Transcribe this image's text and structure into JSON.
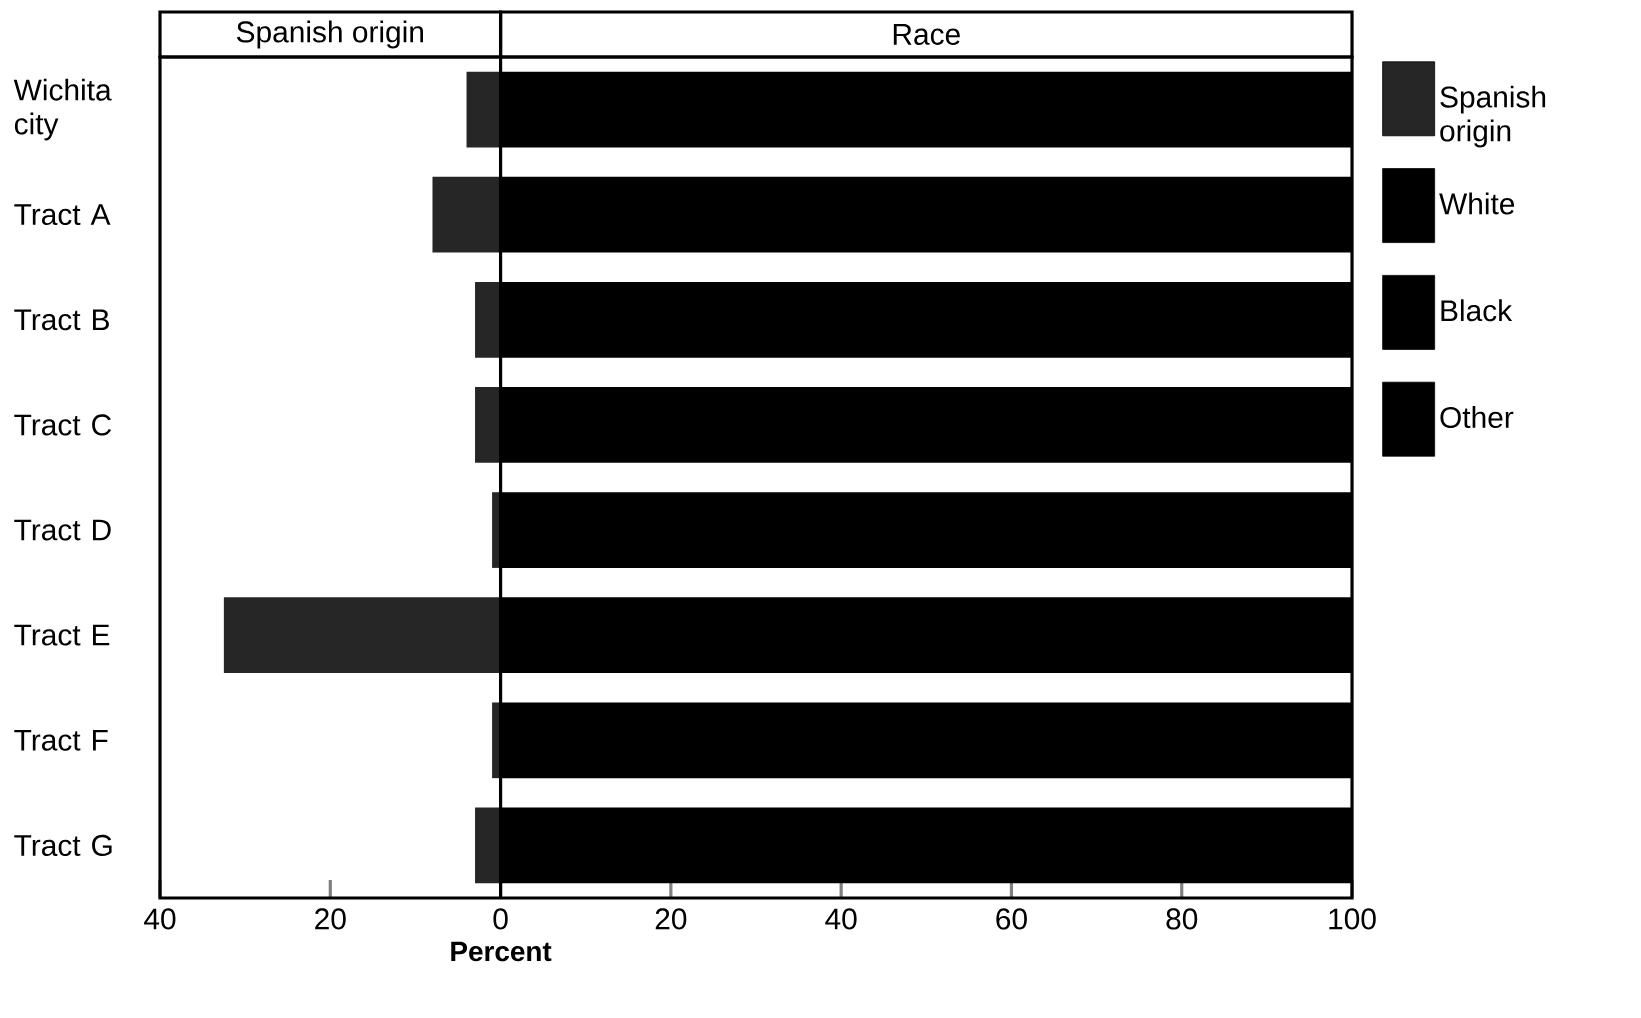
{
  "chart_data": {
    "type": "bar",
    "orientation": "horizontal",
    "stacked": true,
    "categories": [
      "Wichita city",
      "Tract A",
      "Tract B",
      "Tract C",
      "Tract D",
      "Tract E",
      "Tract F",
      "Tract G"
    ],
    "series": [
      {
        "name": "Spanish origin",
        "color": "#262626",
        "values": [
          -4,
          -8,
          -3,
          -3,
          -1,
          -32.5,
          -1,
          -3
        ]
      },
      {
        "name": "White",
        "color": "#000000",
        "values": [
          100,
          100,
          100,
          100,
          100,
          100,
          100,
          100
        ]
      },
      {
        "name": "Black",
        "color": "#000000",
        "values": [
          null,
          null,
          null,
          null,
          null,
          null,
          null,
          null
        ]
      },
      {
        "name": "Other",
        "color": "#000000",
        "values": [
          null,
          null,
          null,
          null,
          null,
          null,
          null,
          null
        ]
      }
    ],
    "xlabel": "Percent",
    "xlim": [
      -40,
      100
    ],
    "xticks": [
      {
        "value": -40,
        "label": "40"
      },
      {
        "value": -20,
        "label": "20"
      },
      0,
      20,
      40,
      60,
      80,
      100
    ],
    "annotations": [
      "Spanish origin",
      "Race"
    ],
    "ref_lines": [
      {
        "axis": "x",
        "value": 0
      }
    ],
    "legend": "right",
    "grid": false
  }
}
